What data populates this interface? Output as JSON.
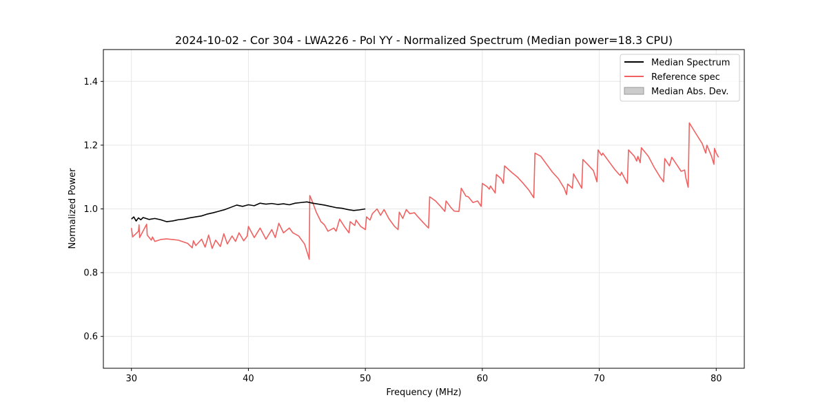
{
  "chart_data": {
    "type": "line",
    "title": "2024-10-02 - Cor 304 - LWA226 - Pol YY - Normalized Spectrum (Median power=18.3 CPU)",
    "xlabel": "Frequency (MHz)",
    "ylabel": "Normalized Power",
    "xlim": [
      27.6,
      82.4
    ],
    "ylim": [
      0.5,
      1.5
    ],
    "xticks": [
      30,
      40,
      50,
      60,
      70,
      80
    ],
    "yticks": [
      0.6,
      0.8,
      1.0,
      1.2,
      1.4
    ],
    "xtick_labels": [
      "30",
      "40",
      "50",
      "60",
      "70",
      "80"
    ],
    "ytick_labels": [
      "0.6",
      "0.8",
      "1.0",
      "1.2",
      "1.4"
    ],
    "grid": true,
    "legend_position": "top-right",
    "series": [
      {
        "name": "Median Spectrum",
        "color": "#000000",
        "points": [
          [
            30.0,
            0.968
          ],
          [
            30.2,
            0.975
          ],
          [
            30.4,
            0.962
          ],
          [
            30.6,
            0.972
          ],
          [
            30.8,
            0.966
          ],
          [
            31.0,
            0.973
          ],
          [
            31.5,
            0.967
          ],
          [
            32.0,
            0.97
          ],
          [
            32.5,
            0.966
          ],
          [
            33.0,
            0.96
          ],
          [
            33.5,
            0.962
          ],
          [
            34.0,
            0.966
          ],
          [
            34.5,
            0.968
          ],
          [
            35.0,
            0.972
          ],
          [
            35.5,
            0.975
          ],
          [
            36.0,
            0.978
          ],
          [
            36.5,
            0.984
          ],
          [
            37.0,
            0.988
          ],
          [
            37.5,
            0.993
          ],
          [
            38.0,
            0.998
          ],
          [
            38.5,
            1.005
          ],
          [
            39.0,
            1.012
          ],
          [
            39.5,
            1.008
          ],
          [
            40.0,
            1.013
          ],
          [
            40.5,
            1.01
          ],
          [
            41.0,
            1.018
          ],
          [
            41.5,
            1.015
          ],
          [
            42.0,
            1.017
          ],
          [
            42.5,
            1.014
          ],
          [
            43.0,
            1.016
          ],
          [
            43.5,
            1.013
          ],
          [
            44.0,
            1.018
          ],
          [
            44.5,
            1.02
          ],
          [
            45.0,
            1.022
          ],
          [
            45.5,
            1.018
          ],
          [
            46.0,
            1.015
          ],
          [
            46.5,
            1.012
          ],
          [
            47.0,
            1.008
          ],
          [
            47.5,
            1.004
          ],
          [
            48.0,
            1.002
          ],
          [
            48.5,
            0.998
          ],
          [
            49.0,
            0.995
          ],
          [
            49.5,
            0.997
          ],
          [
            50.0,
            1.0
          ]
        ]
      },
      {
        "name": "Reference spec",
        "color": "#f06060",
        "points": [
          [
            30.0,
            0.94
          ],
          [
            30.1,
            0.912
          ],
          [
            30.6,
            0.93
          ],
          [
            30.65,
            0.95
          ],
          [
            30.7,
            0.91
          ],
          [
            31.3,
            0.952
          ],
          [
            31.35,
            0.918
          ],
          [
            31.7,
            0.902
          ],
          [
            31.8,
            0.912
          ],
          [
            32.0,
            0.898
          ],
          [
            32.5,
            0.904
          ],
          [
            33.0,
            0.906
          ],
          [
            34.0,
            0.902
          ],
          [
            34.8,
            0.892
          ],
          [
            35.0,
            0.885
          ],
          [
            35.2,
            0.878
          ],
          [
            35.3,
            0.9
          ],
          [
            35.5,
            0.885
          ],
          [
            36.0,
            0.905
          ],
          [
            36.3,
            0.88
          ],
          [
            36.6,
            0.918
          ],
          [
            36.9,
            0.876
          ],
          [
            37.2,
            0.902
          ],
          [
            37.6,
            0.882
          ],
          [
            37.9,
            0.922
          ],
          [
            38.2,
            0.89
          ],
          [
            38.6,
            0.915
          ],
          [
            38.9,
            0.898
          ],
          [
            39.2,
            0.925
          ],
          [
            39.6,
            0.9
          ],
          [
            39.9,
            0.915
          ],
          [
            40.0,
            0.945
          ],
          [
            40.5,
            0.91
          ],
          [
            41.0,
            0.94
          ],
          [
            41.5,
            0.905
          ],
          [
            42.0,
            0.935
          ],
          [
            42.3,
            0.91
          ],
          [
            42.6,
            0.955
          ],
          [
            43.0,
            0.925
          ],
          [
            43.5,
            0.94
          ],
          [
            43.8,
            0.925
          ],
          [
            44.3,
            0.915
          ],
          [
            44.8,
            0.89
          ],
          [
            45.1,
            0.855
          ],
          [
            45.2,
            0.842
          ],
          [
            45.25,
            1.042
          ],
          [
            45.5,
            1.02
          ],
          [
            45.8,
            0.99
          ],
          [
            46.2,
            0.96
          ],
          [
            46.5,
            0.95
          ],
          [
            46.8,
            0.93
          ],
          [
            47.3,
            0.94
          ],
          [
            47.5,
            0.93
          ],
          [
            47.8,
            0.968
          ],
          [
            48.2,
            0.945
          ],
          [
            48.6,
            0.925
          ],
          [
            48.7,
            0.96
          ],
          [
            49.1,
            0.948
          ],
          [
            49.2,
            0.965
          ],
          [
            49.6,
            0.945
          ],
          [
            50.0,
            0.935
          ],
          [
            50.1,
            0.975
          ],
          [
            50.4,
            0.965
          ],
          [
            50.6,
            0.985
          ],
          [
            51.0,
            1.0
          ],
          [
            51.3,
            0.98
          ],
          [
            51.6,
            0.998
          ],
          [
            52.0,
            0.97
          ],
          [
            52.5,
            0.945
          ],
          [
            52.8,
            0.935
          ],
          [
            52.9,
            0.99
          ],
          [
            53.2,
            0.97
          ],
          [
            53.5,
            0.998
          ],
          [
            53.8,
            0.985
          ],
          [
            54.2,
            0.988
          ],
          [
            54.5,
            0.975
          ],
          [
            55.0,
            0.955
          ],
          [
            55.4,
            0.94
          ],
          [
            55.5,
            1.038
          ],
          [
            56.0,
            1.025
          ],
          [
            56.5,
            1.005
          ],
          [
            56.8,
            0.992
          ],
          [
            56.9,
            1.025
          ],
          [
            57.3,
            1.005
          ],
          [
            57.6,
            0.993
          ],
          [
            58.0,
            0.992
          ],
          [
            58.2,
            1.065
          ],
          [
            58.6,
            1.04
          ],
          [
            58.8,
            1.038
          ],
          [
            59.2,
            1.02
          ],
          [
            59.6,
            1.025
          ],
          [
            59.9,
            1.008
          ],
          [
            60.0,
            1.08
          ],
          [
            60.4,
            1.07
          ],
          [
            60.6,
            1.062
          ],
          [
            60.7,
            1.072
          ],
          [
            61.1,
            1.05
          ],
          [
            61.2,
            1.108
          ],
          [
            61.6,
            1.095
          ],
          [
            61.8,
            1.08
          ],
          [
            61.9,
            1.135
          ],
          [
            62.5,
            1.115
          ],
          [
            63.0,
            1.1
          ],
          [
            63.5,
            1.08
          ],
          [
            64.0,
            1.058
          ],
          [
            64.4,
            1.035
          ],
          [
            64.5,
            1.175
          ],
          [
            65.0,
            1.165
          ],
          [
            65.5,
            1.14
          ],
          [
            66.0,
            1.115
          ],
          [
            66.5,
            1.095
          ],
          [
            67.0,
            1.065
          ],
          [
            67.2,
            1.045
          ],
          [
            67.3,
            1.078
          ],
          [
            67.7,
            1.065
          ],
          [
            67.8,
            1.11
          ],
          [
            68.2,
            1.085
          ],
          [
            68.5,
            1.065
          ],
          [
            68.6,
            1.155
          ],
          [
            69.0,
            1.14
          ],
          [
            69.5,
            1.12
          ],
          [
            69.8,
            1.085
          ],
          [
            69.9,
            1.185
          ],
          [
            70.2,
            1.168
          ],
          [
            70.3,
            1.175
          ],
          [
            70.8,
            1.15
          ],
          [
            71.3,
            1.125
          ],
          [
            71.7,
            1.108
          ],
          [
            71.8,
            1.105
          ],
          [
            71.9,
            1.115
          ],
          [
            72.4,
            1.08
          ],
          [
            72.5,
            1.185
          ],
          [
            73.0,
            1.165
          ],
          [
            73.2,
            1.15
          ],
          [
            73.3,
            1.165
          ],
          [
            73.5,
            1.145
          ],
          [
            73.6,
            1.192
          ],
          [
            74.2,
            1.165
          ],
          [
            74.7,
            1.13
          ],
          [
            75.2,
            1.1
          ],
          [
            75.5,
            1.085
          ],
          [
            75.6,
            1.158
          ],
          [
            76.0,
            1.135
          ],
          [
            76.2,
            1.162
          ],
          [
            76.6,
            1.14
          ],
          [
            77.0,
            1.118
          ],
          [
            77.3,
            1.122
          ],
          [
            77.4,
            1.098
          ],
          [
            77.6,
            1.068
          ],
          [
            77.7,
            1.27
          ],
          [
            78.2,
            1.24
          ],
          [
            78.8,
            1.205
          ],
          [
            79.1,
            1.175
          ],
          [
            79.2,
            1.2
          ],
          [
            79.6,
            1.165
          ],
          [
            79.8,
            1.14
          ],
          [
            79.85,
            1.19
          ],
          [
            80.0,
            1.175
          ],
          [
            80.2,
            1.162
          ]
        ]
      }
    ],
    "legend": [
      {
        "label": "Median Spectrum",
        "kind": "line",
        "color": "#000000"
      },
      {
        "label": "Reference spec",
        "kind": "line",
        "color": "#f06060"
      },
      {
        "label": "Median Abs. Dev.",
        "kind": "patch",
        "color": "#cccccc"
      }
    ]
  }
}
